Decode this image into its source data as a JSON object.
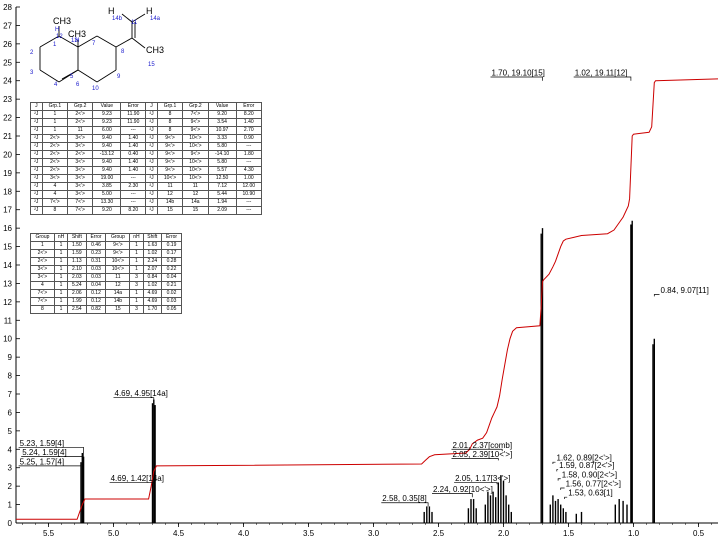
{
  "chart_data": {
    "type": "line",
    "xlim": [
      5.75,
      0.35
    ],
    "ylim": [
      0,
      28
    ],
    "x_ticks": [
      "5.5",
      "5.0",
      "4.5",
      "4.0",
      "3.5",
      "3.0",
      "2.5",
      "2.0",
      "1.5",
      "1.0",
      "0.5"
    ],
    "y_ticks": [
      "0",
      "1",
      "2",
      "3",
      "4",
      "5",
      "6",
      "7",
      "8",
      "9",
      "10",
      "11",
      "12",
      "13",
      "14",
      "15",
      "16",
      "17",
      "18",
      "19",
      "20",
      "21",
      "22",
      "23",
      "24",
      "25",
      "26",
      "27",
      "28"
    ],
    "peaks": [
      {
        "x": 5.25,
        "h": 3.3
      },
      {
        "x": 5.24,
        "h": 3.8
      },
      {
        "x": 5.23,
        "h": 3.6
      },
      {
        "x": 4.7,
        "h": 6.5
      },
      {
        "x": 4.69,
        "h": 6.7
      },
      {
        "x": 4.68,
        "h": 6.4
      },
      {
        "x": 2.61,
        "h": 0.6
      },
      {
        "x": 2.59,
        "h": 0.9
      },
      {
        "x": 2.57,
        "h": 0.9
      },
      {
        "x": 2.55,
        "h": 0.6
      },
      {
        "x": 2.27,
        "h": 0.8
      },
      {
        "x": 2.25,
        "h": 1.3
      },
      {
        "x": 2.23,
        "h": 1.3
      },
      {
        "x": 2.21,
        "h": 0.8
      },
      {
        "x": 2.14,
        "h": 1.0
      },
      {
        "x": 2.12,
        "h": 1.7
      },
      {
        "x": 2.1,
        "h": 1.5
      },
      {
        "x": 2.08,
        "h": 1.7
      },
      {
        "x": 2.06,
        "h": 1.4
      },
      {
        "x": 2.04,
        "h": 2.2
      },
      {
        "x": 2.02,
        "h": 2.6
      },
      {
        "x": 2.0,
        "h": 2.3
      },
      {
        "x": 1.98,
        "h": 1.5
      },
      {
        "x": 1.96,
        "h": 1.0
      },
      {
        "x": 1.94,
        "h": 0.6
      },
      {
        "x": 1.71,
        "h": 15.7
      },
      {
        "x": 1.7,
        "h": 16.0
      },
      {
        "x": 1.64,
        "h": 1.0
      },
      {
        "x": 1.62,
        "h": 1.5
      },
      {
        "x": 1.6,
        "h": 1.2
      },
      {
        "x": 1.58,
        "h": 1.3
      },
      {
        "x": 1.56,
        "h": 1.0
      },
      {
        "x": 1.54,
        "h": 0.8
      },
      {
        "x": 1.52,
        "h": 0.6
      },
      {
        "x": 1.44,
        "h": 0.5
      },
      {
        "x": 1.4,
        "h": 0.6
      },
      {
        "x": 1.14,
        "h": 1.0
      },
      {
        "x": 1.11,
        "h": 1.3
      },
      {
        "x": 1.08,
        "h": 1.2
      },
      {
        "x": 1.05,
        "h": 1.0
      },
      {
        "x": 1.02,
        "h": 16.2
      },
      {
        "x": 1.01,
        "h": 16.4
      },
      {
        "x": 0.85,
        "h": 9.7
      },
      {
        "x": 0.84,
        "h": 10.0
      }
    ],
    "integral": [
      [
        5.75,
        0.2
      ],
      [
        5.28,
        0.2
      ],
      [
        5.27,
        0.4
      ],
      [
        5.24,
        1.0
      ],
      [
        5.22,
        1.3
      ],
      [
        4.73,
        1.3
      ],
      [
        4.71,
        2.0
      ],
      [
        4.69,
        2.8
      ],
      [
        4.67,
        3.1
      ],
      [
        2.63,
        3.2
      ],
      [
        2.6,
        3.4
      ],
      [
        2.57,
        3.6
      ],
      [
        2.53,
        3.7
      ],
      [
        2.29,
        3.8
      ],
      [
        2.26,
        4.0
      ],
      [
        2.24,
        4.3
      ],
      [
        2.2,
        4.5
      ],
      [
        2.16,
        4.6
      ],
      [
        2.13,
        4.9
      ],
      [
        2.11,
        5.3
      ],
      [
        2.09,
        5.7
      ],
      [
        2.07,
        6.0
      ],
      [
        2.05,
        6.3
      ],
      [
        2.03,
        6.9
      ],
      [
        2.01,
        7.8
      ],
      [
        1.99,
        8.6
      ],
      [
        1.97,
        9.4
      ],
      [
        1.95,
        10.0
      ],
      [
        1.93,
        10.4
      ],
      [
        1.9,
        10.6
      ],
      [
        1.72,
        10.7
      ],
      [
        1.71,
        11.8
      ],
      [
        1.7,
        13.1
      ],
      [
        1.69,
        13.2
      ],
      [
        1.65,
        13.5
      ],
      [
        1.62,
        13.9
      ],
      [
        1.6,
        14.2
      ],
      [
        1.58,
        14.6
      ],
      [
        1.56,
        15.0
      ],
      [
        1.54,
        15.3
      ],
      [
        1.52,
        15.4
      ],
      [
        1.46,
        15.5
      ],
      [
        1.4,
        15.6
      ],
      [
        1.2,
        15.7
      ],
      [
        1.15,
        15.9
      ],
      [
        1.12,
        16.2
      ],
      [
        1.08,
        16.6
      ],
      [
        1.04,
        17.2
      ],
      [
        1.03,
        17.6
      ],
      [
        1.02,
        19.3
      ],
      [
        1.01,
        21.0
      ],
      [
        1.0,
        21.1
      ],
      [
        0.88,
        21.2
      ],
      [
        0.86,
        21.5
      ],
      [
        0.85,
        22.7
      ],
      [
        0.84,
        23.9
      ],
      [
        0.83,
        24.0
      ],
      [
        0.35,
        24.1
      ]
    ],
    "annotations": [
      {
        "text": "5.23, 1.59[4]",
        "x": 5.23,
        "h": 3.3,
        "ly": 4.1,
        "lx": 5.73
      },
      {
        "text": "5.24, 1.59[4]",
        "x": 5.24,
        "h": 3.5,
        "ly": 3.6,
        "lx": 5.71
      },
      {
        "text": "5.25, 1.57[4]",
        "x": 5.25,
        "h": 3.0,
        "ly": 3.1,
        "lx": 5.73
      },
      {
        "text": "4.69, 4.95[14a]",
        "x": 4.69,
        "h": 6.7,
        "ly": 6.8,
        "lx": 5.0
      },
      {
        "text": "4.69, 1.42[14a]",
        "x": 4.69,
        "h": 2.1,
        "ly": 2.2,
        "lx": 5.03
      },
      {
        "text": "2.58, 0.35[8]",
        "x": 2.58,
        "h": 0.9,
        "ly": 1.1,
        "lx": 2.94
      },
      {
        "text": "2.24, 0.92[10<'>]",
        "x": 2.24,
        "h": 1.4,
        "ly": 1.6,
        "lx": 2.55
      },
      {
        "text": "2.05, 1.17[3<'>]",
        "x": 2.05,
        "h": 2.1,
        "ly": 2.2,
        "lx": 2.38
      },
      {
        "text": "2.05, 2.39[10<'>]",
        "x": 2.04,
        "h": 3.4,
        "ly": 3.5,
        "lx": 2.4
      },
      {
        "text": "2.01, 2.37[comb]",
        "x": 2.01,
        "h": 3.9,
        "ly": 4.0,
        "lx": 2.4
      },
      {
        "text": "1.70, 19.10[15]",
        "x": 1.7,
        "h": 24.0,
        "ly": 24.2,
        "lx": 2.1
      },
      {
        "text": "1.02, 19.11[12]",
        "x": 1.02,
        "h": 24.0,
        "ly": 24.2,
        "lx": 1.46
      },
      {
        "text": "1.62, 0.89[2<'>]",
        "x": 1.62,
        "h": 3.2,
        "ly": 3.3,
        "lx": 1.6
      },
      {
        "text": "1.59, 0.87[2<'>]",
        "x": 1.59,
        "h": 2.8,
        "ly": 2.9,
        "lx": 1.58
      },
      {
        "text": "1.58, 0.90[2<'>]",
        "x": 1.58,
        "h": 2.3,
        "ly": 2.4,
        "lx": 1.56
      },
      {
        "text": "1.56, 0.77[2<'>]",
        "x": 1.56,
        "h": 1.8,
        "ly": 1.9,
        "lx": 1.53
      },
      {
        "text": "1.53, 0.63[1]",
        "x": 1.53,
        "h": 1.3,
        "ly": 1.4,
        "lx": 1.51
      },
      {
        "text": "0.84, 9.07[11]",
        "x": 0.84,
        "h": 12.3,
        "ly": 12.4,
        "lx": 0.8
      }
    ],
    "series_colors": {
      "spectrum": "#000000",
      "integral": "#cc0000",
      "molecule_blue": "#1a1acc"
    }
  },
  "molecule": {
    "labels": [
      {
        "t": "CH3",
        "k": "ch3a"
      },
      {
        "t": "CH3",
        "k": "ch3b"
      },
      {
        "t": "H",
        "k": "h1"
      },
      {
        "t": "H",
        "k": "h2"
      },
      {
        "t": "14b",
        "k": "n14b"
      },
      {
        "t": "14a",
        "k": "n14a"
      },
      {
        "t": "13",
        "k": "n13"
      },
      {
        "t": "11",
        "k": "n11"
      },
      {
        "t": "CH3",
        "k": "ch3c"
      },
      {
        "t": "15",
        "k": "n15"
      },
      {
        "t": "4",
        "k": "n4"
      },
      {
        "t": "12",
        "k": "n12"
      },
      {
        "t": "3",
        "k": "n3"
      },
      {
        "t": "2",
        "k": "n2"
      },
      {
        "t": "1",
        "k": "n1"
      },
      {
        "t": "7",
        "k": "n7"
      },
      {
        "t": "8",
        "k": "n8"
      },
      {
        "t": "6",
        "k": "n6"
      },
      {
        "t": "5",
        "k": "n5"
      },
      {
        "t": "9",
        "k": "n9"
      },
      {
        "t": "10",
        "k": "n10"
      }
    ]
  },
  "coupling_table": {
    "headers": [
      "J",
      "Grp.1",
      "Grp.2",
      "Value",
      "Error",
      "J",
      "Grp.1",
      "Grp.2",
      "Value",
      "Error"
    ],
    "rows": [
      [
        "²J",
        "1",
        "2<'>",
        "9.23",
        "11.90",
        "²J",
        "8",
        "7<'>",
        "9.20",
        "8.20"
      ],
      [
        "²J",
        "1",
        "2<'>",
        "9.23",
        "11.90",
        "²J",
        "8",
        "9<'>",
        "3.54",
        "1.40"
      ],
      [
        "²J",
        "1",
        "11",
        "6.00",
        "---",
        "²J",
        "8",
        "9<'>",
        "10.97",
        "2.70"
      ],
      [
        "²J",
        "2<'>",
        "3<'>",
        "9.40",
        "1.40",
        "²J",
        "9<'>",
        "10<'>",
        "3.33",
        "0.90"
      ],
      [
        "²J",
        "2<'>",
        "3<'>",
        "9.40",
        "1.40",
        "²J",
        "9<'>",
        "10<'>",
        "5.80",
        "---"
      ],
      [
        "²J",
        "2<'>",
        "2<'>",
        "-13.12",
        "0.40",
        "²J",
        "9<'>",
        "9<'>",
        "-14.10",
        "1.80"
      ],
      [
        "²J",
        "2<'>",
        "3<'>",
        "9.40",
        "1.40",
        "²J",
        "9<'>",
        "10<'>",
        "5.80",
        "---"
      ],
      [
        "²J",
        "2<'>",
        "3<'>",
        "9.40",
        "1.40",
        "²J",
        "9<'>",
        "10<'>",
        "5.57",
        "4.30"
      ],
      [
        "²J",
        "3<'>",
        "3<'>",
        "19.00",
        "---",
        "²J",
        "10<'>",
        "10<'>",
        "12.50",
        "1.00"
      ],
      [
        "²J",
        "4",
        "3<'>",
        "3.85",
        "2.30",
        "²J",
        "11",
        "11",
        "7.12",
        "12.00"
      ],
      [
        "²J",
        "4",
        "3<'>",
        "5.00",
        "---",
        "²J",
        "12",
        "12",
        "5.44",
        "10.90"
      ],
      [
        "²J",
        "7<'>",
        "7<'>",
        "13.30",
        "---",
        "²J",
        "14b",
        "14a",
        "1.94",
        "---"
      ],
      [
        "²J",
        "8",
        "7<'>",
        "9.20",
        "8.20",
        "²J",
        "15",
        "15",
        "2.09",
        "---"
      ]
    ]
  },
  "shift_table": {
    "headers": [
      "Group",
      "nH",
      "Shift",
      "Error",
      "Group",
      "nH",
      "Shift",
      "Error"
    ],
    "rows": [
      [
        "1",
        "1",
        "1.50",
        "0.46",
        "9<'>",
        "1",
        "1.63",
        "0.19"
      ],
      [
        "2<'>",
        "1",
        "1.59",
        "0.23",
        "9<'>",
        "1",
        "1.02",
        "0.17"
      ],
      [
        "2<'>",
        "1",
        "1.13",
        "0.31",
        "10<'>",
        "1",
        "2.24",
        "0.28"
      ],
      [
        "3<'>",
        "1",
        "2.10",
        "0.03",
        "10<'>",
        "1",
        "2.07",
        "0.22"
      ],
      [
        "3<'>",
        "1",
        "2.03",
        "0.03",
        "11",
        "3",
        "0.84",
        "0.04"
      ],
      [
        "4",
        "1",
        "5.24",
        "0.04",
        "12",
        "3",
        "1.02",
        "0.21"
      ],
      [
        "7<'>",
        "1",
        "2.06",
        "0.12",
        "14a",
        "1",
        "4.69",
        "0.02"
      ],
      [
        "7<'>",
        "1",
        "1.99",
        "0.12",
        "14b",
        "1",
        "4.69",
        "0.03"
      ],
      [
        "8",
        "1",
        "2.54",
        "0.82",
        "15",
        "3",
        "1.70",
        "0.05"
      ]
    ]
  }
}
